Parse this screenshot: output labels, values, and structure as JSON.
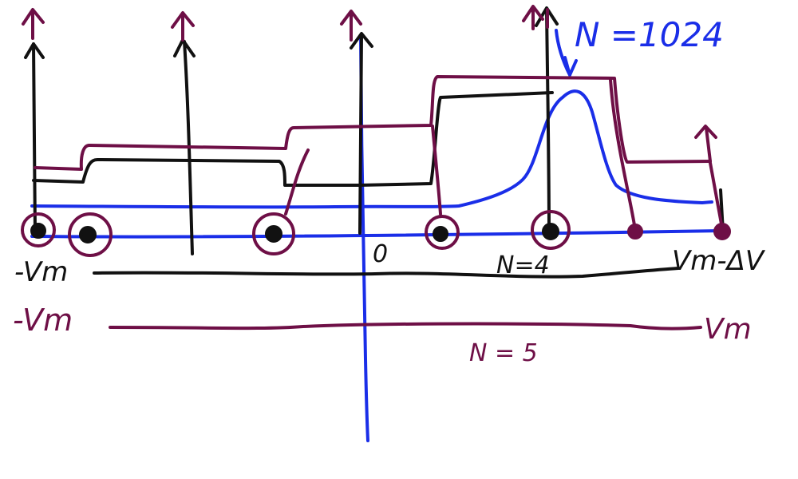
{
  "colors": {
    "black": "#111111",
    "maroon": "#6e0f46",
    "blue": "#1a2ee8",
    "background": "#ffffff"
  },
  "labels": {
    "n1024": "N =1024",
    "neg_vm_black": "-Vm",
    "zero": "0",
    "n4": "N=4",
    "vm_minus_dv": "Vm-ΔV",
    "neg_vm_maroon": "-Vm",
    "vm_maroon": "Vm",
    "n5": "N = 5"
  }
}
